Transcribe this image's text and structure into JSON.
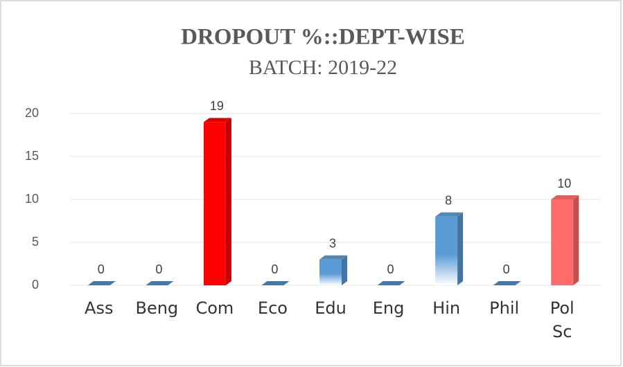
{
  "chart_data": {
    "type": "bar3d",
    "title": "DROPOUT %::DEPT-WISE",
    "subtitle": "BATCH: 2019-22",
    "categories": [
      "Ass",
      "Beng",
      "Com",
      "Eco",
      "Edu",
      "Eng",
      "Hin",
      "Phil",
      "Pol Sc"
    ],
    "values": [
      0,
      0,
      19,
      0,
      3,
      0,
      8,
      0,
      10
    ],
    "colors": [
      "#4f87c0",
      "#4f87c0",
      "#ff0000",
      "#4f87c0",
      "#5b9bd5",
      "#4f87c0",
      "#5b9bd5",
      "#4f87c0",
      "#ff6b6b"
    ],
    "ylim": [
      0,
      20
    ],
    "yticks": [
      0,
      5,
      10,
      15,
      20
    ],
    "grid": true
  }
}
